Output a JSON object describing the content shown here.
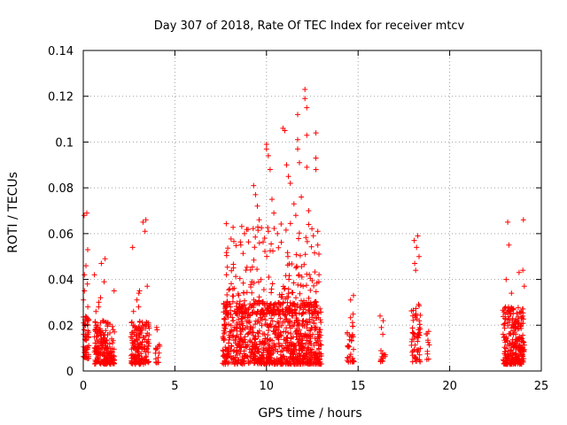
{
  "chart_data": {
    "type": "scatter",
    "title": "Day 307 of 2018, Rate Of TEC Index for receiver mtcv",
    "xlabel": "GPS time / hours",
    "ylabel": "ROTI / TECUs",
    "xlim": [
      0,
      25
    ],
    "ylim": [
      0,
      0.14
    ],
    "x_ticks": [
      0,
      5,
      10,
      15,
      20,
      25
    ],
    "y_ticks": [
      0,
      0.02,
      0.04,
      0.06,
      0.08,
      0.1,
      0.12,
      0.14
    ],
    "grid": true,
    "marker": "+",
    "color": "#ff0000",
    "clusters": [
      {
        "x_range": [
          0.0,
          0.3
        ],
        "y_range": [
          0.005,
          0.024
        ],
        "n": 60,
        "extra_y": [
          0.069,
          0.068,
          0.053,
          0.046,
          0.042,
          0.038,
          0.035,
          0.031,
          0.028
        ]
      },
      {
        "x_range": [
          0.6,
          1.7
        ],
        "y_range": [
          0.003,
          0.022
        ],
        "n": 200,
        "extra_y": [
          0.049,
          0.047,
          0.042,
          0.039,
          0.035,
          0.032,
          0.03,
          0.028,
          0.026
        ]
      },
      {
        "x_range": [
          2.6,
          3.6
        ],
        "y_range": [
          0.003,
          0.022
        ],
        "n": 160,
        "extra_y": [
          0.066,
          0.065,
          0.061,
          0.054,
          0.037,
          0.035,
          0.034,
          0.031,
          0.028,
          0.026
        ]
      },
      {
        "x_range": [
          3.9,
          4.2
        ],
        "y_range": [
          0.003,
          0.012
        ],
        "n": 14,
        "extra_y": [
          0.019,
          0.018
        ]
      },
      {
        "x_range": [
          7.6,
          13.0
        ],
        "y_range": [
          0.003,
          0.03
        ],
        "n": 900,
        "extra_y": []
      },
      {
        "x_range": [
          14.4,
          14.8
        ],
        "y_range": [
          0.004,
          0.025
        ],
        "n": 35,
        "extra_y": [
          0.033,
          0.031
        ]
      },
      {
        "x_range": [
          16.2,
          16.5
        ],
        "y_range": [
          0.004,
          0.01
        ],
        "n": 14,
        "extra_y": [
          0.024,
          0.022,
          0.019,
          0.016
        ]
      },
      {
        "x_range": [
          17.9,
          18.4
        ],
        "y_range": [
          0.004,
          0.03
        ],
        "n": 60,
        "extra_y": [
          0.059,
          0.057,
          0.054,
          0.05,
          0.047,
          0.044
        ]
      },
      {
        "x_range": [
          18.7,
          18.9
        ],
        "y_range": [
          0.004,
          0.018
        ],
        "n": 10,
        "extra_y": []
      },
      {
        "x_range": [
          22.9,
          24.1
        ],
        "y_range": [
          0.003,
          0.028
        ],
        "n": 260,
        "extra_y": [
          0.066,
          0.065,
          0.055,
          0.044,
          0.043,
          0.04,
          0.037,
          0.034
        ]
      }
    ],
    "storm_peaks": [
      {
        "x": 8.2,
        "y": 0.045
      },
      {
        "x": 8.6,
        "y": 0.055
      },
      {
        "x": 8.8,
        "y": 0.06
      },
      {
        "x": 9.3,
        "y": 0.081
      },
      {
        "x": 9.4,
        "y": 0.077
      },
      {
        "x": 9.5,
        "y": 0.072
      },
      {
        "x": 9.6,
        "y": 0.066
      },
      {
        "x": 9.9,
        "y": 0.058
      },
      {
        "x": 10.0,
        "y": 0.099
      },
      {
        "x": 10.0,
        "y": 0.097
      },
      {
        "x": 10.1,
        "y": 0.094
      },
      {
        "x": 10.2,
        "y": 0.088
      },
      {
        "x": 10.3,
        "y": 0.075
      },
      {
        "x": 10.4,
        "y": 0.069
      },
      {
        "x": 10.6,
        "y": 0.06
      },
      {
        "x": 10.9,
        "y": 0.106
      },
      {
        "x": 11.0,
        "y": 0.105
      },
      {
        "x": 11.1,
        "y": 0.09
      },
      {
        "x": 11.2,
        "y": 0.085
      },
      {
        "x": 11.3,
        "y": 0.082
      },
      {
        "x": 11.5,
        "y": 0.073
      },
      {
        "x": 11.6,
        "y": 0.068
      },
      {
        "x": 11.7,
        "y": 0.112
      },
      {
        "x": 11.7,
        "y": 0.101
      },
      {
        "x": 11.7,
        "y": 0.097
      },
      {
        "x": 11.8,
        "y": 0.091
      },
      {
        "x": 11.9,
        "y": 0.076
      },
      {
        "x": 12.1,
        "y": 0.123
      },
      {
        "x": 12.1,
        "y": 0.119
      },
      {
        "x": 12.2,
        "y": 0.115
      },
      {
        "x": 12.2,
        "y": 0.103
      },
      {
        "x": 12.2,
        "y": 0.089
      },
      {
        "x": 12.3,
        "y": 0.07
      },
      {
        "x": 12.3,
        "y": 0.064
      },
      {
        "x": 12.7,
        "y": 0.104
      },
      {
        "x": 12.7,
        "y": 0.093
      },
      {
        "x": 12.7,
        "y": 0.088
      },
      {
        "x": 12.8,
        "y": 0.061
      },
      {
        "x": 12.8,
        "y": 0.055
      }
    ]
  }
}
